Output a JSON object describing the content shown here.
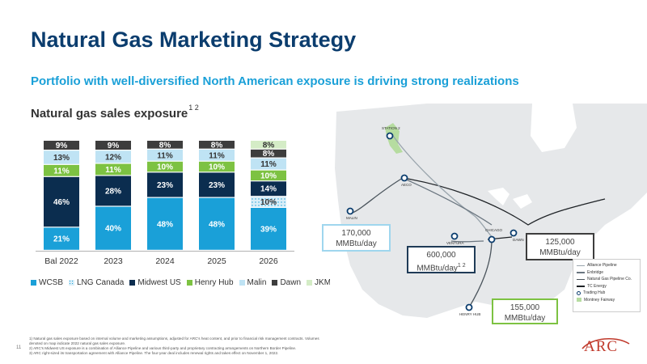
{
  "header": {
    "title": "Natural Gas Marketing Strategy",
    "subtitle": "Portfolio with well-diversified North American exposure is driving strong realizations"
  },
  "chart_data": {
    "type": "bar",
    "stacked": true,
    "title": "Natural gas sales exposure",
    "title_superscript": "1 2",
    "categories": [
      "Bal 2022",
      "2023",
      "2024",
      "2025",
      "2026"
    ],
    "ylim": [
      0,
      100
    ],
    "grid": false,
    "legend_position": "bottom",
    "series": [
      {
        "name": "WCSB",
        "color": "#1aa0d8",
        "values": [
          21,
          40,
          48,
          48,
          39
        ],
        "labels": [
          "21%",
          "40%",
          "48%",
          "48%",
          "39%"
        ]
      },
      {
        "name": "LNG Canada",
        "color": "#bfe3f4",
        "pattern": "dots",
        "values": [
          0,
          0,
          0,
          0,
          10
        ],
        "labels": [
          "",
          "",
          "",
          "",
          "10%"
        ]
      },
      {
        "name": "Midwest US",
        "color": "#0b2d4f",
        "values": [
          46,
          28,
          23,
          23,
          14
        ],
        "labels": [
          "46%",
          "28%",
          "23%",
          "23%",
          "14%"
        ]
      },
      {
        "name": "Henry Hub",
        "color": "#7dc242",
        "values": [
          11,
          11,
          10,
          10,
          10
        ],
        "labels": [
          "11%",
          "11%",
          "10%",
          "10%",
          "10%"
        ]
      },
      {
        "name": "Malin",
        "color": "#bfe3f4",
        "values": [
          13,
          12,
          11,
          11,
          11
        ],
        "labels": [
          "13%",
          "12%",
          "11%",
          "11%",
          "11%"
        ]
      },
      {
        "name": "Dawn",
        "color": "#3d3d3d",
        "values": [
          9,
          9,
          8,
          8,
          8
        ],
        "labels": [
          "9%",
          "9%",
          "8%",
          "8%",
          "8%"
        ]
      },
      {
        "name": "JKM",
        "color": "#d4ecc6",
        "values": [
          0,
          0,
          0,
          0,
          8
        ],
        "labels": [
          "",
          "",
          "",
          "",
          "8%"
        ]
      }
    ]
  },
  "map": {
    "callouts": [
      {
        "line1": "170,000",
        "line2": "MMBtu/day",
        "sup": "",
        "color": "#9fd6ee"
      },
      {
        "line1": "600,000",
        "line2": "MMBtu/day",
        "sup": "1 2",
        "color": "#1f3b57"
      },
      {
        "line1": "125,000",
        "line2": "MMBtu/day",
        "sup": "",
        "color": "#3d3d3d"
      },
      {
        "line1": "155,000",
        "line2": "MMBtu/day",
        "sup": "",
        "color": "#7dc242"
      }
    ],
    "cities": [
      "STATION 2",
      "AECO",
      "MALIN",
      "CHICAGO",
      "VENTURA",
      "DAWN",
      "HENRY HUB"
    ],
    "legend": [
      {
        "label": "Alliance Pipeline",
        "kind": "line",
        "color": "#9aa5ad"
      },
      {
        "label": "Enbridge",
        "kind": "line",
        "color": "#6b7680"
      },
      {
        "label": "Natural Gas Pipeline Co.",
        "kind": "line",
        "color": "#4a545c"
      },
      {
        "label": "TC Energy",
        "kind": "line",
        "color": "#1e2226"
      },
      {
        "label": "Trading Hub",
        "kind": "dot",
        "color": "#0b3d6e"
      },
      {
        "label": "Montney Fairway",
        "kind": "square",
        "color": "#b6dca0"
      }
    ]
  },
  "footer": {
    "page_number": "11",
    "footnote_1": "1)   Natural gas sales exposure based on internal volume and marketing assumptions, adjusted for ARC's heat content, and prior to financial risk management contracts. Volumes denoted on map indicate 2022 natural gas sales exposure.",
    "footnote_2": "2)   ARC's Midwest US exposure is a combination of Alliance Pipeline and various third-party and proprietary contracting arrangements on Northern Border Pipeline.",
    "footnote_3": "3)   ARC right-sized its transportation agreement with Alliance Pipeline. The four-year deal includes renewal rights and takes effect on November 1, 2022.",
    "logo_text": "ARC"
  }
}
